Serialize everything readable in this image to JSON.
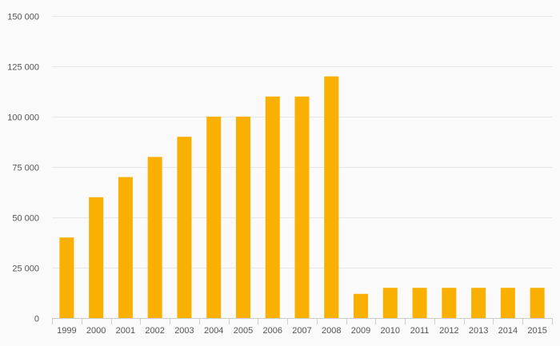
{
  "chart_data": {
    "type": "bar",
    "title": "",
    "xlabel": "",
    "ylabel": "",
    "categories": [
      "1999",
      "2000",
      "2001",
      "2002",
      "2003",
      "2004",
      "2005",
      "2006",
      "2007",
      "2008",
      "2009",
      "2010",
      "2011",
      "2012",
      "2013",
      "2014",
      "2015"
    ],
    "values": [
      40000,
      60000,
      70000,
      80000,
      90000,
      100000,
      100000,
      110000,
      110000,
      120000,
      12000,
      15000,
      15000,
      15000,
      15000,
      15000,
      15000
    ],
    "ylim": [
      0,
      150000
    ],
    "yticks": [
      0,
      25000,
      50000,
      75000,
      100000,
      125000,
      150000
    ],
    "ytick_labels": [
      "0",
      "25 000",
      "50 000",
      "75 000",
      "100 000",
      "125 000",
      "150 000"
    ],
    "grid": true,
    "legend": "none",
    "bar_color": "#f9b000"
  }
}
